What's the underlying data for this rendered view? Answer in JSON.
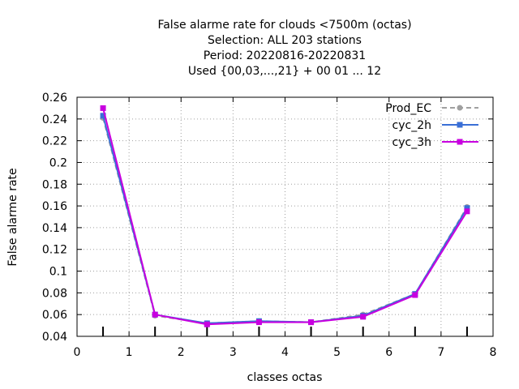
{
  "chart_data": {
    "type": "line",
    "title_lines": [
      "False alarme rate  for clouds <7500m (octas)",
      "Selection: ALL    203 stations",
      "Period: 20220816-20220831",
      "Used {00,03,...,21} + 00 01 ... 12"
    ],
    "xlabel": "classes octas",
    "ylabel": "False alarme rate",
    "xlim": [
      0,
      8
    ],
    "ylim": [
      0.04,
      0.26
    ],
    "x_ticks": [
      "0",
      "1",
      "2",
      "3",
      "4",
      "5",
      "6",
      "7",
      "8"
    ],
    "y_ticks": [
      "0.04",
      "0.06",
      "0.08",
      "0.1",
      "0.12",
      "0.14",
      "0.16",
      "0.18",
      "0.2",
      "0.22",
      "0.24",
      "0.26"
    ],
    "grid": true,
    "legend_position": "top-right",
    "x": [
      0.5,
      1.5,
      2.5,
      3.5,
      4.5,
      5.5,
      6.5,
      7.5
    ],
    "series": [
      {
        "name": "Prod_EC",
        "color": "#a0a0a0",
        "dashed": true,
        "marker": "filled-circle",
        "values": [
          0.241,
          0.059,
          0.052,
          0.054,
          0.053,
          0.06,
          0.079,
          0.159
        ]
      },
      {
        "name": "cyc_2h",
        "color": "#3a6fd6",
        "dashed": false,
        "marker": "filled-square",
        "values": [
          0.243,
          0.06,
          0.052,
          0.054,
          0.053,
          0.059,
          0.079,
          0.158
        ]
      },
      {
        "name": "cyc_3h",
        "color": "#c800e0",
        "dashed": false,
        "marker": "filled-square",
        "values": [
          0.25,
          0.06,
          0.051,
          0.053,
          0.053,
          0.058,
          0.078,
          0.155
        ]
      }
    ]
  }
}
